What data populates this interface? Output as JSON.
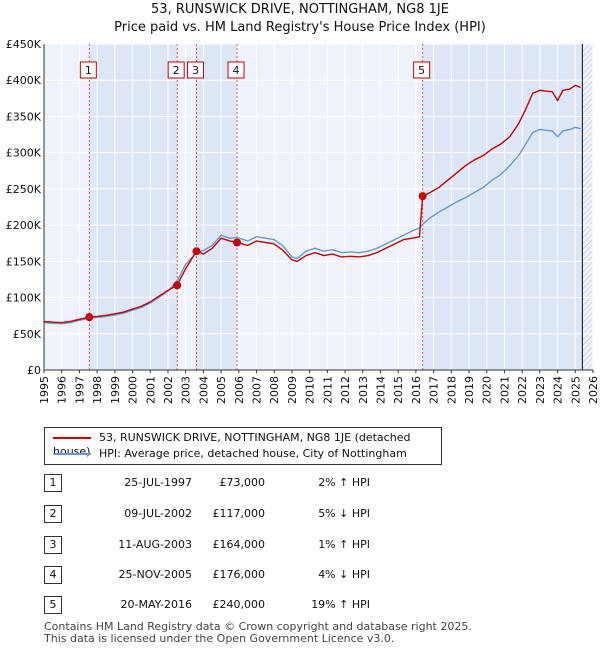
{
  "chart_data": {
    "type": "line",
    "title": "53, RUNSWICK DRIVE, NOTTINGHAM, NG8 1JE",
    "subtitle": "Price paid vs. HM Land Registry's House Price Index (HPI)",
    "xlabel": "",
    "ylabel": "",
    "xlim": [
      1995,
      2026
    ],
    "ylim": [
      0,
      450000
    ],
    "x_ticks": [
      "1995",
      "1996",
      "1997",
      "1998",
      "1999",
      "2000",
      "2001",
      "2002",
      "2003",
      "2004",
      "2005",
      "2006",
      "2007",
      "2008",
      "2009",
      "2010",
      "2011",
      "2012",
      "2013",
      "2014",
      "2015",
      "2016",
      "2017",
      "2018",
      "2019",
      "2020",
      "2021",
      "2022",
      "2023",
      "2024",
      "2025",
      "2026"
    ],
    "y_ticks": [
      {
        "value": 0,
        "label": "£0"
      },
      {
        "value": 50000,
        "label": "£50K"
      },
      {
        "value": 100000,
        "label": "£100K"
      },
      {
        "value": 150000,
        "label": "£150K"
      },
      {
        "value": 200000,
        "label": "£200K"
      },
      {
        "value": 250000,
        "label": "£250K"
      },
      {
        "value": 300000,
        "label": "£300K"
      },
      {
        "value": 350000,
        "label": "£350K"
      },
      {
        "value": 400000,
        "label": "£400K"
      },
      {
        "value": 450000,
        "label": "£450K"
      }
    ],
    "series": [
      {
        "name": "53, RUNSWICK DRIVE, NOTTINGHAM, NG8 1JE (detached house)",
        "color": "#cc0000",
        "x": [
          1995.0,
          1995.5,
          1996.0,
          1996.5,
          1997.0,
          1997.56,
          1998.0,
          1998.5,
          1999.0,
          1999.5,
          2000.0,
          2000.5,
          2001.0,
          2001.5,
          2002.0,
          2002.52,
          2003.0,
          2003.61,
          2004.0,
          2004.5,
          2005.0,
          2005.5,
          2005.9,
          2006.5,
          2007.0,
          2007.5,
          2008.0,
          2008.5,
          2009.0,
          2009.3,
          2009.8,
          2010.3,
          2010.8,
          2011.3,
          2011.8,
          2012.3,
          2012.8,
          2013.3,
          2013.8,
          2014.3,
          2014.8,
          2015.3,
          2015.8,
          2016.2,
          2016.38,
          2016.8,
          2017.3,
          2017.8,
          2018.3,
          2018.8,
          2019.3,
          2019.8,
          2020.3,
          2020.8,
          2021.3,
          2021.8,
          2022.2,
          2022.6,
          2023.0,
          2023.3,
          2023.7,
          2024.0,
          2024.3,
          2024.7,
          2025.0,
          2025.3
        ],
        "values": [
          67000,
          66000,
          65500,
          67000,
          70000,
          73000,
          74000,
          75500,
          77500,
          80000,
          84000,
          88000,
          94000,
          102000,
          110000,
          117000,
          140000,
          164000,
          160000,
          168000,
          182000,
          178000,
          176000,
          172000,
          178000,
          176000,
          174000,
          165000,
          152000,
          150000,
          158000,
          162000,
          158000,
          160000,
          156000,
          157000,
          156000,
          158000,
          162000,
          168000,
          174000,
          180000,
          182000,
          184000,
          240000,
          245000,
          252000,
          262000,
          272000,
          282000,
          290000,
          296000,
          305000,
          312000,
          322000,
          340000,
          360000,
          382000,
          386000,
          385000,
          384000,
          372000,
          386000,
          388000,
          393000,
          390000
        ]
      },
      {
        "name": "HPI: Average price, detached house, City of Nottingham",
        "color": "#6699cc",
        "x": [
          1995.0,
          1995.5,
          1996.0,
          1996.5,
          1997.0,
          1997.56,
          1998.0,
          1998.5,
          1999.0,
          1999.5,
          2000.0,
          2000.5,
          2001.0,
          2001.5,
          2002.0,
          2002.52,
          2003.0,
          2003.61,
          2004.0,
          2004.5,
          2005.0,
          2005.5,
          2005.9,
          2006.5,
          2007.0,
          2007.5,
          2008.0,
          2008.5,
          2009.0,
          2009.3,
          2009.8,
          2010.3,
          2010.8,
          2011.3,
          2011.8,
          2012.3,
          2012.8,
          2013.3,
          2013.8,
          2014.3,
          2014.8,
          2015.3,
          2015.8,
          2016.2,
          2016.38,
          2016.8,
          2017.3,
          2017.8,
          2018.3,
          2018.8,
          2019.3,
          2019.8,
          2020.3,
          2020.8,
          2021.3,
          2021.8,
          2022.2,
          2022.6,
          2023.0,
          2023.3,
          2023.7,
          2024.0,
          2024.3,
          2024.7,
          2025.0,
          2025.3
        ],
        "values": [
          65500,
          64500,
          64000,
          65500,
          68500,
          71500,
          72500,
          74000,
          76000,
          78500,
          82500,
          86500,
          92500,
          100500,
          109000,
          123000,
          146000,
          162000,
          165000,
          172000,
          186000,
          182000,
          183000,
          178000,
          184000,
          182000,
          180000,
          171000,
          156000,
          154000,
          164000,
          168000,
          164000,
          166000,
          162000,
          163000,
          162000,
          164000,
          168000,
          174000,
          180000,
          186000,
          192000,
          196000,
          201000,
          210000,
          218000,
          225000,
          232000,
          238000,
          245000,
          252000,
          262000,
          270000,
          282000,
          296000,
          312000,
          328000,
          332000,
          331000,
          330000,
          322000,
          330000,
          332000,
          335000,
          333000
        ]
      }
    ],
    "sales": [
      {
        "n": "1",
        "x": 1997.56,
        "value": 73000
      },
      {
        "n": "2",
        "x": 2002.52,
        "value": 117000
      },
      {
        "n": "3",
        "x": 2003.61,
        "value": 164000
      },
      {
        "n": "4",
        "x": 2005.9,
        "value": 176000
      },
      {
        "n": "5",
        "x": 2016.38,
        "value": 240000
      }
    ],
    "legend_position": "below"
  },
  "header": {
    "title": "53, RUNSWICK DRIVE, NOTTINGHAM, NG8 1JE",
    "subtitle": "Price paid vs. HM Land Registry's House Price Index (HPI)"
  },
  "legend": {
    "property": "53, RUNSWICK DRIVE, NOTTINGHAM, NG8 1JE (detached house)",
    "hpi": "HPI: Average price, detached house, City of Nottingham",
    "property_color": "#cc0000",
    "hpi_color": "#6699cc"
  },
  "transactions": [
    {
      "n": "1",
      "date": "25-JUL-1997",
      "price": "£73,000",
      "hpi": "2% ↑ HPI"
    },
    {
      "n": "2",
      "date": "09-JUL-2002",
      "price": "£117,000",
      "hpi": "5% ↓ HPI"
    },
    {
      "n": "3",
      "date": "11-AUG-2003",
      "price": "£164,000",
      "hpi": "1% ↑ HPI"
    },
    {
      "n": "4",
      "date": "25-NOV-2005",
      "price": "£176,000",
      "hpi": "4% ↓ HPI"
    },
    {
      "n": "5",
      "date": "20-MAY-2016",
      "price": "£240,000",
      "hpi": "19% ↑ HPI"
    }
  ],
  "footer": {
    "line1": "Contains HM Land Registry data © Crown copyright and database right 2025.",
    "line2": "This data is licensed under the Open Government Licence v3.0."
  }
}
